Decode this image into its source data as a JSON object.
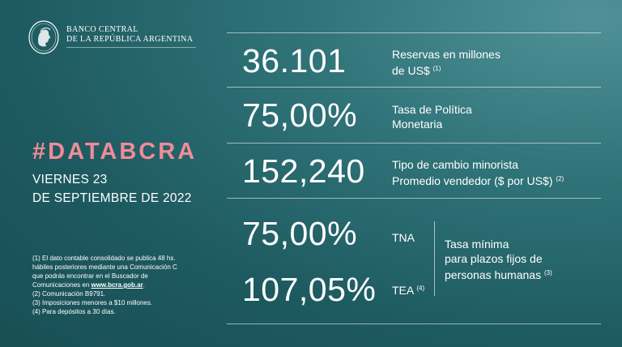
{
  "header": {
    "bank_line1": "BANCO CENTRAL",
    "bank_line2": "DE LA REPÚBLICA ARGENTINA",
    "logo_icon": "bcra-medallion-logo"
  },
  "left": {
    "hashtag": "#DATABCRA",
    "date_line1": "VIERNES 23",
    "date_line2": "DE SEPTIEMBRE DE 2022"
  },
  "notes": {
    "n1_a": "(1) El dato contable consolidado se publica 48 hs.",
    "n1_b": "hábiles posteriores mediante una Comunicación C",
    "n1_c": "que podrás encontrar en el Buscador de",
    "n1_d_prefix": "Comunicaciones en ",
    "n1_d_link": "www.bcra.gob.ar",
    "n1_d_suffix": ".",
    "n2": "(2) Comunicación B9791.",
    "n3": "(3) Imposiciones menores a $10 millones.",
    "n4": "(4) Para depósitos a 30 días."
  },
  "metrics": {
    "reserves": {
      "value": "36.101",
      "label1": "Reservas en millones",
      "label2": "de US$",
      "note": "(1)"
    },
    "policy_rate": {
      "value": "75,00%",
      "label1": "Tasa de Política",
      "label2": "Monetaria"
    },
    "exchange": {
      "value": "152,240",
      "label1": "Tipo de cambio minorista",
      "label2": "Promedio vendedor  ($ por US$)",
      "note": "(2)"
    },
    "tna": {
      "value": "75,00%",
      "label": "TNA"
    },
    "tea": {
      "value": "107,05%",
      "label": "TEA",
      "note": "(4)"
    },
    "fixed_term": {
      "line1": "Tasa mínima",
      "line2": "para plazos fijos de",
      "line3": "personas humanas",
      "note": "(3)"
    }
  },
  "colors": {
    "background": "#1f6066",
    "accent": "#f08b98",
    "text": "#ffffff"
  }
}
